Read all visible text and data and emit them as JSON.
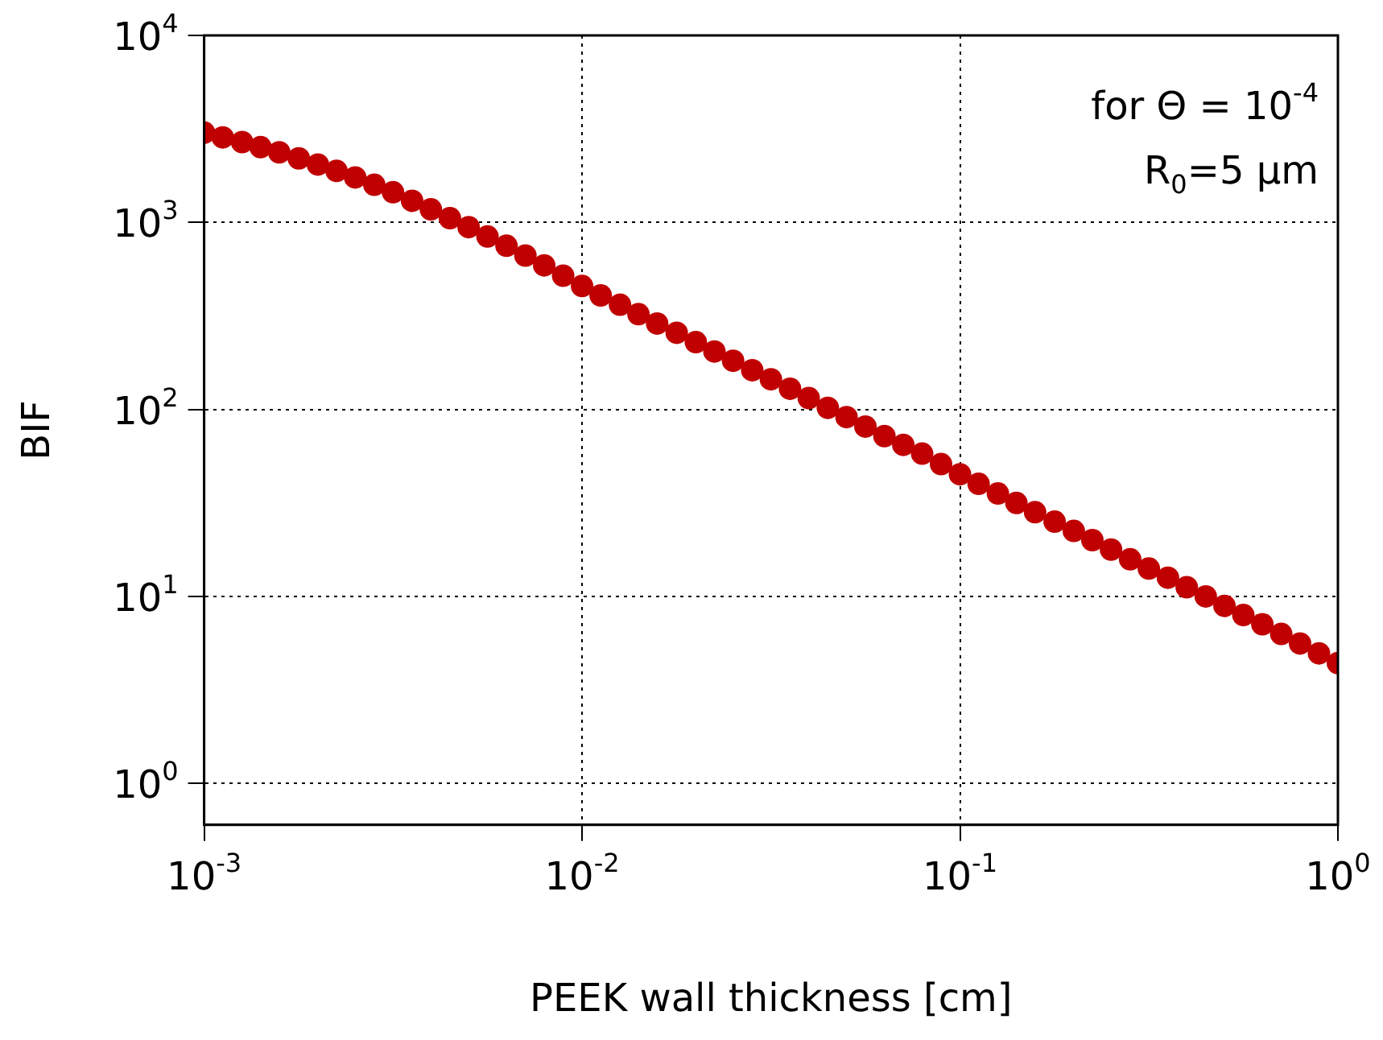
{
  "chart_data": {
    "type": "scatter",
    "xlabel": "PEEK wall thickness [cm]",
    "ylabel": "BIF",
    "annotations": [
      "for Θ = 10$^{-4}$",
      "R$_{0}$=5 μm"
    ],
    "log": "xy",
    "grid": true,
    "legend": false,
    "marker": "circle",
    "xlim": [
      0.001,
      1
    ],
    "ylim": [
      0.63,
      10000
    ],
    "xticks": [
      {
        "value": 0.001,
        "label": "10$^{-3}$"
      },
      {
        "value": 0.01,
        "label": "10$^{-2}$"
      },
      {
        "value": 0.1,
        "label": "10$^{-1}$"
      },
      {
        "value": 1,
        "label": "10$^{0}$"
      }
    ],
    "yticks": [
      {
        "value": 1,
        "label": "10$^{0}$"
      },
      {
        "value": 10,
        "label": "10$^{1}$"
      },
      {
        "value": 100,
        "label": "10$^{2}$"
      },
      {
        "value": 1000,
        "label": "10$^{3}$"
      },
      {
        "value": 10000,
        "label": "10$^{4}$"
      }
    ],
    "x": [
      0.001,
      0.00112,
      0.00126,
      0.00141,
      0.00158,
      0.00178,
      0.002,
      0.00224,
      0.00251,
      0.00282,
      0.00316,
      0.00355,
      0.00398,
      0.00447,
      0.00501,
      0.00562,
      0.00631,
      0.00708,
      0.00794,
      0.00891,
      0.01,
      0.0112,
      0.0126,
      0.0141,
      0.0158,
      0.0178,
      0.02,
      0.0224,
      0.0251,
      0.0282,
      0.0316,
      0.0355,
      0.0398,
      0.0447,
      0.0501,
      0.0562,
      0.0631,
      0.0708,
      0.0794,
      0.0891,
      0.1,
      0.112,
      0.126,
      0.141,
      0.158,
      0.178,
      0.2,
      0.224,
      0.251,
      0.282,
      0.316,
      0.355,
      0.398,
      0.447,
      0.501,
      0.562,
      0.631,
      0.708,
      0.794,
      0.891,
      1
    ],
    "series": [
      {
        "color": "#c00000",
        "values": [
          3020,
          2850,
          2690,
          2525,
          2370,
          2200,
          2040,
          1885,
          1740,
          1590,
          1450,
          1305,
          1175,
          1053,
          944,
          841,
          750,
          665,
          589,
          519,
          457,
          407,
          363,
          323,
          288,
          257,
          229,
          204,
          182,
          162,
          145,
          129,
          115,
          102,
          91,
          81,
          72,
          64.6,
          58,
          51,
          45,
          40,
          35.5,
          31.6,
          28.2,
          25.1,
          22.4,
          20,
          17.8,
          15.8,
          14.1,
          12.6,
          11.2,
          10,
          8.9,
          7.95,
          7.1,
          6.3,
          5.6,
          4.96,
          4.4
        ]
      }
    ]
  }
}
